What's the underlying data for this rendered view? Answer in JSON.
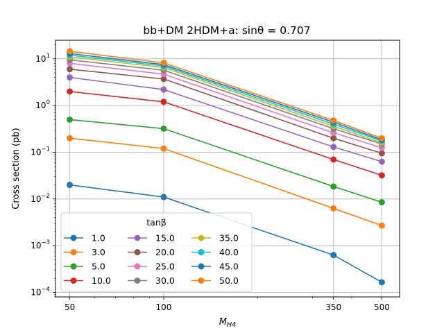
{
  "chart_data": {
    "type": "line",
    "title": "bb+DM 2HDM+a: sinθ = 0.707",
    "xlabel": "M_H4",
    "ylabel": "Cross section (pb)",
    "x_scale": "log",
    "y_scale": "log",
    "xlim": [
      45,
      570
    ],
    "ylim": [
      8e-05,
      25
    ],
    "grid": true,
    "x": [
      50,
      100,
      350,
      500
    ],
    "x_tick_labels": [
      "50",
      "100",
      "350",
      "500"
    ],
    "y_ticks": [
      0.0001,
      0.001,
      0.01,
      0.1,
      1,
      10
    ],
    "legend": {
      "title": "tanβ",
      "placement": "lower-left",
      "columns": 3
    },
    "series": [
      {
        "name": "1.0",
        "color": "#1f77b4",
        "values": [
          0.02,
          0.011,
          0.00063,
          0.000165
        ]
      },
      {
        "name": "3.0",
        "color": "#ff7f0e",
        "values": [
          0.2,
          0.12,
          0.0063,
          0.0027
        ]
      },
      {
        "name": "5.0",
        "color": "#2ca02c",
        "values": [
          0.5,
          0.32,
          0.0185,
          0.0085
        ]
      },
      {
        "name": "10.0",
        "color": "#d62728",
        "values": [
          2.0,
          1.2,
          0.07,
          0.032
        ]
      },
      {
        "name": "15.0",
        "color": "#9467bd",
        "values": [
          4.0,
          2.2,
          0.13,
          0.063
        ]
      },
      {
        "name": "20.0",
        "color": "#8c564b",
        "values": [
          6.0,
          3.7,
          0.2,
          0.095
        ]
      },
      {
        "name": "25.0",
        "color": "#e377c2",
        "values": [
          8.0,
          4.7,
          0.26,
          0.125
        ]
      },
      {
        "name": "30.0",
        "color": "#7f7f7f",
        "values": [
          9.5,
          5.7,
          0.32,
          0.15
        ]
      },
      {
        "name": "35.0",
        "color": "#bcbd22",
        "values": [
          11.0,
          6.5,
          0.36,
          0.16
        ]
      },
      {
        "name": "40.0",
        "color": "#17becf",
        "values": [
          12.0,
          7.0,
          0.4,
          0.175
        ]
      },
      {
        "name": "45.0",
        "color": "#1f77b4",
        "values": [
          13.0,
          7.5,
          0.44,
          0.185
        ]
      },
      {
        "name": "50.0",
        "color": "#ff7f0e",
        "values": [
          14.5,
          8.2,
          0.48,
          0.2
        ]
      }
    ]
  }
}
